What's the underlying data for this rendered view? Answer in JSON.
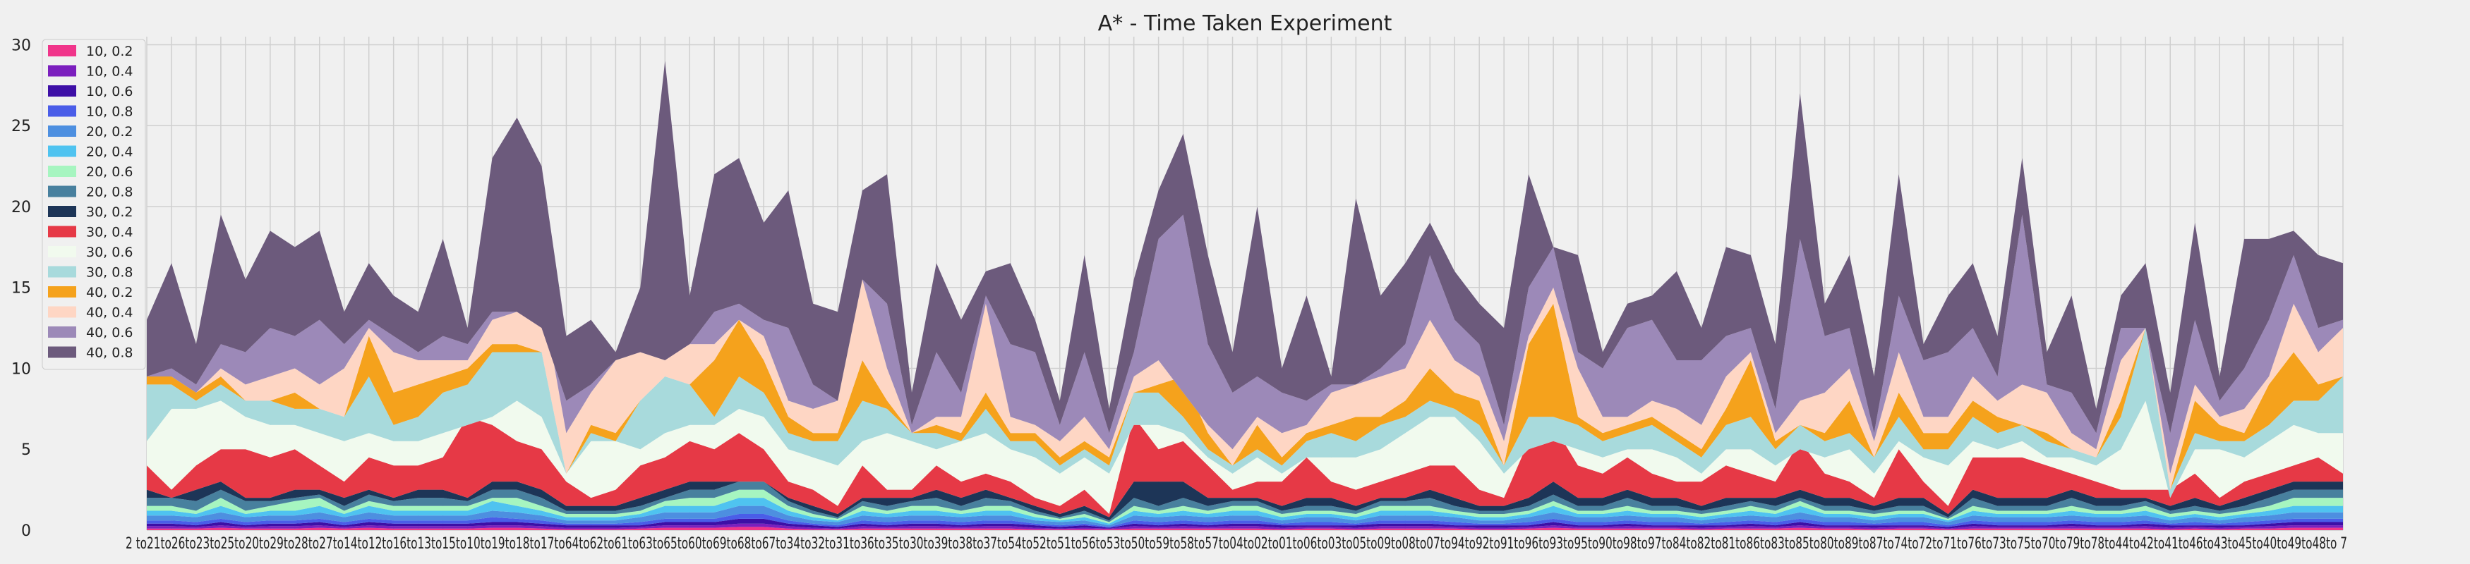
{
  "chart_data": {
    "type": "area",
    "stacked": true,
    "title": "A* - Time Taken Experiment",
    "xlabel": "",
    "ylabel": "",
    "ylim": [
      0,
      30.5
    ],
    "yticks": [
      0,
      5,
      10,
      15,
      20,
      25,
      30
    ],
    "grid": true,
    "legend_position": "top-left",
    "x": [
      "2 to21",
      "to26",
      "to23",
      "to25",
      "to20",
      "to29",
      "to28",
      "to27",
      "to14",
      "to12",
      "to16",
      "to13",
      "to15",
      "to10",
      "to19",
      "to18",
      "to17",
      "to64",
      "to62",
      "to61",
      "to63",
      "to65",
      "to60",
      "to69",
      "to68",
      "to67",
      "to34",
      "to32",
      "to31",
      "to36",
      "to35",
      "to30",
      "to39",
      "to38",
      "to37",
      "to54",
      "to52",
      "to51",
      "to56",
      "to53",
      "to50",
      "to59",
      "to58",
      "to57",
      "to04",
      "to02",
      "to01",
      "to06",
      "to03",
      "to05",
      "to09",
      "to08",
      "to07",
      "to94",
      "to92",
      "to91",
      "to96",
      "to93",
      "to95",
      "to90",
      "to98",
      "to97",
      "to84",
      "to82",
      "to81",
      "to86",
      "to83",
      "to85",
      "to80",
      "to89",
      "to87",
      "to74",
      "to72",
      "to71",
      "to76",
      "to73",
      "to75",
      "to70",
      "to79",
      "to78",
      "to44",
      "to42",
      "to41",
      "to46",
      "to43",
      "to45",
      "to40",
      "to49",
      "to48",
      "to 7"
    ],
    "x_axis_text": "2 to21to26to23to25to20to29to28to27to14to12to16to13to15to10to19to18to17to64to62to61to63to65to60to69to68to67to34to32to31to36to35to30to39to38to37to54to52to51to56to53to50to59to58to57to04to02to01to06to03to05to09to08to07to94to92to91to96to93to95to90to98to97to84to82to81to86to83to85to80to89to87to74to72to71to76to73to75to70to79to78to44to42to41to46to43to45to40to49to48to 7",
    "totals": [
      13,
      16.5,
      11.5,
      19.5,
      15.5,
      18.5,
      17.5,
      18.5,
      13.5,
      16.5,
      14.5,
      13.5,
      18,
      12.5,
      23,
      25.5,
      22.5,
      12,
      13,
      11,
      15,
      29,
      14.5,
      22,
      23,
      19,
      21,
      14,
      13.5,
      21,
      22,
      8.5,
      16.5,
      13,
      16,
      16.5,
      13,
      8,
      17,
      7.5,
      15.5,
      21,
      24.5,
      17,
      11,
      20,
      10,
      14.5,
      9.5,
      20.5,
      14.5,
      16.5,
      19,
      16,
      14,
      12.5,
      22,
      17.5,
      17,
      11,
      14,
      14.5,
      16,
      12.5,
      17.5,
      17,
      11.5,
      27,
      14,
      17,
      9.5,
      22,
      11.5,
      14.5,
      16.5,
      12,
      23,
      11,
      14.5,
      7.5,
      14.5,
      16.5,
      8.5,
      19,
      9.5,
      18,
      18,
      18.5,
      17,
      16.5
    ],
    "bound_40_6": [
      9.5,
      10,
      9,
      11.5,
      11,
      12.5,
      12,
      13,
      11.5,
      13,
      12,
      11,
      12,
      11.5,
      13.5,
      13.5,
      12.5,
      8,
      9,
      10.5,
      11,
      10.5,
      11.5,
      13.5,
      14,
      13,
      12.5,
      9,
      8,
      15.5,
      14,
      6.5,
      11,
      8.5,
      14.5,
      11.5,
      11,
      6.5,
      11,
      6,
      11,
      18,
      19.5,
      11.5,
      8.5,
      9.5,
      8.5,
      8,
      9,
      9,
      10,
      11.5,
      17,
      13,
      11.5,
      6.5,
      15,
      17.5,
      11,
      10,
      12.5,
      13,
      10.5,
      10.5,
      12,
      12.5,
      7.5,
      18,
      12,
      12.5,
      6,
      14.5,
      10.5,
      11,
      12.5,
      9.5,
      19.5,
      9,
      8.5,
      6,
      12.5,
      12.5,
      6,
      13,
      8,
      10,
      13,
      17,
      12.5,
      13
    ],
    "bound_40_4": [
      9.5,
      9.5,
      8.5,
      10,
      9,
      9.5,
      10,
      9,
      10,
      12.5,
      11,
      10.5,
      10.5,
      10.5,
      13,
      13.5,
      14.5,
      6,
      8.5,
      10.5,
      11,
      10.5,
      11.5,
      11.5,
      13,
      12,
      8,
      7.5,
      8,
      15.5,
      10,
      6,
      7,
      7,
      14,
      7,
      6.5,
      5.5,
      7,
      5,
      9.5,
      10.5,
      8.5,
      6.5,
      5,
      7,
      6,
      6.5,
      8.5,
      9,
      9.5,
      10,
      13,
      10.5,
      9.5,
      5.5,
      12,
      15,
      10,
      7,
      7,
      8,
      7.5,
      6.5,
      9.5,
      11,
      6,
      8,
      8.5,
      10,
      5.5,
      11,
      7,
      7,
      9.5,
      8,
      9,
      8.5,
      6,
      5,
      10.5,
      12.5,
      3.5,
      9,
      7,
      7.5,
      9.5,
      14,
      11,
      12.5
    ],
    "bound_40_2": [
      9.5,
      9.5,
      8.5,
      9.5,
      8,
      8,
      8.5,
      7.5,
      7,
      12,
      8.5,
      9,
      9.5,
      10,
      11.5,
      11.5,
      11,
      3.5,
      6.5,
      6,
      8,
      9.5,
      9,
      10.5,
      13,
      10.5,
      7,
      6,
      6,
      10.5,
      8,
      6,
      6.5,
      6,
      8.5,
      6,
      6,
      4.5,
      5.5,
      4.5,
      8.5,
      9,
      9.5,
      6,
      4,
      6.5,
      4.5,
      6,
      6.5,
      7,
      7,
      8,
      10,
      8.5,
      8,
      4,
      11.5,
      14,
      7,
      6,
      6.5,
      7,
      6,
      5,
      7.5,
      10.5,
      5.5,
      6.5,
      6,
      8,
      4.5,
      8.5,
      6,
      6,
      8,
      7,
      6.5,
      6,
      5,
      4.5,
      8,
      12.5,
      2.5,
      8,
      6.5,
      6,
      9,
      11,
      9,
      9.5
    ],
    "bound_30_8": [
      9,
      9,
      8,
      9,
      8,
      8,
      7.5,
      7.5,
      7,
      9.5,
      6.5,
      7,
      8.5,
      9,
      11,
      11,
      11,
      3.5,
      6,
      5.5,
      8,
      9.5,
      9,
      7,
      9.5,
      8.5,
      6,
      5.5,
      5.5,
      8,
      7.5,
      6,
      6,
      5.5,
      7.5,
      5.5,
      5.5,
      4,
      5,
      4,
      8.5,
      8.5,
      7,
      5,
      4,
      5,
      4,
      5.5,
      6,
      5.5,
      6.5,
      7,
      8,
      7.5,
      6.5,
      4,
      7,
      7,
      6.5,
      5.5,
      6,
      6.5,
      5.5,
      4.5,
      6.5,
      7,
      5,
      6.5,
      5.5,
      6,
      4.5,
      7,
      5,
      5,
      7,
      6,
      6.5,
      5.5,
      5,
      4.5,
      7,
      12.5,
      2.5,
      6,
      5.5,
      5.5,
      6.5,
      8,
      8,
      9.5
    ],
    "bound_30_6": [
      5.5,
      7.5,
      7.5,
      8,
      7,
      6.5,
      6.5,
      6,
      5.5,
      6,
      5.5,
      5.5,
      6,
      6.5,
      7,
      8,
      7,
      3.5,
      5.5,
      5.5,
      5,
      6,
      6.5,
      6.5,
      7.5,
      7,
      5,
      4.5,
      4,
      5.5,
      6,
      5.5,
      5,
      5.5,
      6,
      5,
      4.5,
      3.5,
      4.5,
      3.5,
      6.5,
      6.5,
      6,
      4.5,
      3.5,
      4.5,
      3.5,
      4.5,
      4.5,
      4.5,
      5,
      6,
      7,
      7,
      5.5,
      3.5,
      5,
      5.5,
      5,
      4.5,
      5,
      5,
      4.5,
      3.5,
      5,
      5,
      4,
      5,
      4.5,
      5,
      3.5,
      5.5,
      4.5,
      4,
      5.5,
      5,
      5.5,
      4.5,
      4.5,
      4,
      5,
      8,
      2,
      5,
      5,
      4.5,
      5.5,
      6.5,
      6,
      6
    ],
    "bound_30_4": [
      4,
      2.5,
      4,
      5,
      5,
      4.5,
      5,
      4,
      3,
      4.5,
      4,
      4,
      4.5,
      7,
      6.5,
      5.5,
      5,
      3,
      2,
      2.5,
      4,
      4.5,
      5.5,
      5,
      6,
      5,
      3,
      2.5,
      1.5,
      4,
      2.5,
      2.5,
      4,
      3,
      3.5,
      3,
      2,
      1.5,
      2.5,
      1,
      7,
      5,
      5.5,
      4,
      2.5,
      3,
      3,
      4.5,
      3,
      2.5,
      3,
      3.5,
      4,
      4,
      2.5,
      2,
      5.5,
      6.5,
      4,
      3.5,
      4.5,
      3.5,
      3,
      3,
      4,
      3.5,
      3,
      5.5,
      3.5,
      3,
      2,
      5,
      3,
      1.5,
      4.5,
      4.5,
      4.5,
      4,
      3.5,
      3,
      2.5,
      2.5,
      2.5,
      3.5,
      2,
      3,
      3.5,
      4,
      4.5,
      3.5
    ],
    "bound_30_2": [
      2.5,
      2,
      2.5,
      3,
      2,
      2,
      2.5,
      2.5,
      2,
      2.5,
      2,
      2.5,
      2.5,
      2,
      3,
      3,
      2.5,
      1.5,
      1.5,
      1.5,
      2,
      2.5,
      3,
      3,
      3,
      3,
      2,
      1.5,
      1,
      2,
      2,
      2,
      2.5,
      2,
      2.5,
      2,
      1.5,
      1,
      1.5,
      0.8,
      3,
      3,
      3,
      2,
      2,
      2,
      1.5,
      2,
      2,
      1.5,
      2,
      2,
      2.5,
      2,
      1.5,
      1.5,
      2,
      3,
      2,
      2,
      2.5,
      2,
      2,
      1.5,
      2,
      2,
      2,
      2.5,
      2,
      2,
      1.5,
      2,
      2,
      1,
      2.5,
      2,
      2,
      2,
      2.5,
      2,
      2,
      2,
      1.5,
      2,
      1.5,
      2,
      2.5,
      3,
      3,
      3
    ],
    "bound_20_8": [
      2,
      2,
      1.8,
      2.5,
      1.8,
      1.8,
      2,
      2.2,
      1.5,
      2.2,
      1.8,
      2,
      2,
      1.8,
      2.5,
      2.5,
      2,
      1.2,
      1.2,
      1.2,
      1.5,
      2,
      2.5,
      2.5,
      3,
      3,
      1.8,
      1.2,
      0.8,
      1.8,
      1.5,
      1.8,
      2,
      1.5,
      2,
      1.8,
      1.2,
      0.8,
      1.2,
      0.6,
      2,
      1.5,
      2,
      1.5,
      1.8,
      1.8,
      1.2,
      1.5,
      1.5,
      1.2,
      1.8,
      1.8,
      2,
      1.5,
      1.2,
      1.2,
      1.5,
      2.2,
      1.5,
      1.5,
      2,
      1.5,
      1.5,
      1.2,
      1.5,
      1.8,
      1.5,
      2,
      1.5,
      1.5,
      1.2,
      1.5,
      1.5,
      0.8,
      2,
      1.5,
      1.5,
      1.5,
      2,
      1.5,
      1.5,
      1.8,
      1.2,
      1.5,
      1.2,
      1.5,
      2,
      2.5,
      2.5,
      2.5
    ],
    "bound_20_6": [
      1.5,
      1.5,
      1.2,
      2,
      1.2,
      1.5,
      1.8,
      2,
      1.2,
      1.8,
      1.5,
      1.5,
      1.5,
      1.5,
      2,
      2,
      1.5,
      1,
      1,
      1,
      1.2,
      1.8,
      2,
      2,
      2.5,
      2.5,
      1.5,
      1,
      0.7,
      1.5,
      1.2,
      1.5,
      1.5,
      1.2,
      1.5,
      1.5,
      1,
      0.7,
      1,
      0.5,
      1.5,
      1.2,
      1.5,
      1.2,
      1.5,
      1.5,
      1,
      1.2,
      1.2,
      1,
      1.5,
      1.5,
      1.5,
      1.2,
      1,
      1,
      1.2,
      1.8,
      1.2,
      1.2,
      1.5,
      1.2,
      1.2,
      1,
      1.2,
      1.5,
      1.2,
      1.8,
      1.2,
      1.2,
      1,
      1.2,
      1.2,
      0.7,
      1.5,
      1.2,
      1.2,
      1.2,
      1.5,
      1.2,
      1.2,
      1.5,
      1,
      1.2,
      1,
      1.2,
      1.5,
      2,
      2,
      2
    ],
    "bound_20_4": [
      1.2,
      1.2,
      1,
      1.5,
      1,
      1.2,
      1.2,
      1.5,
      1,
      1.5,
      1.2,
      1.2,
      1.2,
      1.2,
      1.8,
      1.5,
      1.2,
      0.8,
      0.8,
      0.8,
      1,
      1.5,
      1.5,
      1.5,
      2,
      2,
      1.2,
      0.8,
      0.6,
      1.2,
      1,
      1.2,
      1.2,
      1,
      1.2,
      1.2,
      0.8,
      0.6,
      0.8,
      0.4,
      1.2,
      1,
      1.2,
      1,
      1.2,
      1.2,
      0.8,
      1,
      1,
      0.8,
      1.2,
      1.2,
      1.2,
      1,
      0.8,
      0.8,
      1,
      1.5,
      1,
      1,
      1.2,
      1,
      1,
      0.8,
      1,
      1.2,
      1,
      1.5,
      1,
      1,
      0.8,
      1,
      1,
      0.6,
      1.2,
      1,
      1,
      1,
      1.2,
      1,
      1,
      1.2,
      0.8,
      1,
      0.8,
      1,
      1.2,
      1.5,
      1.5,
      1.5
    ],
    "bound_20_2": [
      0.9,
      0.9,
      0.8,
      1.1,
      0.8,
      0.9,
      0.9,
      1.1,
      0.8,
      1.1,
      0.9,
      0.9,
      0.9,
      0.9,
      1.2,
      1.1,
      0.9,
      0.6,
      0.6,
      0.6,
      0.8,
      1.1,
      1.1,
      1.1,
      1.5,
      1.5,
      0.9,
      0.6,
      0.5,
      0.9,
      0.8,
      0.9,
      0.9,
      0.8,
      0.9,
      0.9,
      0.6,
      0.5,
      0.6,
      0.3,
      0.9,
      0.8,
      0.9,
      0.8,
      0.9,
      0.9,
      0.6,
      0.8,
      0.8,
      0.6,
      0.9,
      0.9,
      0.9,
      0.8,
      0.6,
      0.6,
      0.8,
      1.1,
      0.8,
      0.8,
      0.9,
      0.8,
      0.8,
      0.6,
      0.8,
      0.9,
      0.8,
      1.1,
      0.8,
      0.8,
      0.6,
      0.8,
      0.8,
      0.5,
      0.9,
      0.8,
      0.8,
      0.8,
      0.9,
      0.8,
      0.8,
      0.9,
      0.6,
      0.8,
      0.6,
      0.8,
      0.9,
      1.1,
      1.1,
      1.1
    ],
    "bound_10_8": [
      0.6,
      0.6,
      0.5,
      0.7,
      0.5,
      0.6,
      0.6,
      0.7,
      0.5,
      0.7,
      0.6,
      0.6,
      0.6,
      0.6,
      0.8,
      0.7,
      0.6,
      0.4,
      0.4,
      0.4,
      0.5,
      0.7,
      0.7,
      0.7,
      1,
      1,
      0.6,
      0.4,
      0.3,
      0.6,
      0.5,
      0.6,
      0.6,
      0.5,
      0.6,
      0.6,
      0.4,
      0.3,
      0.4,
      0.2,
      0.6,
      0.5,
      0.6,
      0.5,
      0.6,
      0.6,
      0.4,
      0.5,
      0.5,
      0.4,
      0.6,
      0.6,
      0.6,
      0.5,
      0.4,
      0.4,
      0.5,
      0.7,
      0.5,
      0.5,
      0.6,
      0.5,
      0.5,
      0.4,
      0.5,
      0.6,
      0.5,
      0.7,
      0.5,
      0.5,
      0.4,
      0.5,
      0.5,
      0.3,
      0.6,
      0.5,
      0.5,
      0.5,
      0.6,
      0.5,
      0.5,
      0.6,
      0.4,
      0.5,
      0.4,
      0.5,
      0.6,
      0.7,
      0.7,
      0.7
    ],
    "bound_10_6": [
      0.4,
      0.4,
      0.3,
      0.5,
      0.3,
      0.4,
      0.4,
      0.5,
      0.3,
      0.5,
      0.4,
      0.4,
      0.4,
      0.4,
      0.5,
      0.5,
      0.4,
      0.3,
      0.3,
      0.3,
      0.3,
      0.5,
      0.5,
      0.5,
      0.7,
      0.7,
      0.4,
      0.3,
      0.2,
      0.4,
      0.3,
      0.4,
      0.4,
      0.3,
      0.4,
      0.4,
      0.3,
      0.2,
      0.3,
      0.15,
      0.4,
      0.3,
      0.4,
      0.3,
      0.4,
      0.4,
      0.3,
      0.3,
      0.3,
      0.3,
      0.4,
      0.4,
      0.4,
      0.3,
      0.3,
      0.3,
      0.3,
      0.5,
      0.3,
      0.3,
      0.4,
      0.3,
      0.3,
      0.3,
      0.3,
      0.4,
      0.3,
      0.5,
      0.3,
      0.3,
      0.3,
      0.3,
      0.3,
      0.2,
      0.4,
      0.3,
      0.3,
      0.3,
      0.4,
      0.3,
      0.3,
      0.4,
      0.3,
      0.3,
      0.3,
      0.3,
      0.4,
      0.5,
      0.5,
      0.5
    ],
    "bound_10_4": [
      0.25,
      0.25,
      0.2,
      0.3,
      0.2,
      0.25,
      0.25,
      0.3,
      0.2,
      0.3,
      0.25,
      0.25,
      0.25,
      0.25,
      0.3,
      0.3,
      0.25,
      0.15,
      0.15,
      0.15,
      0.2,
      0.3,
      0.3,
      0.3,
      0.4,
      0.4,
      0.25,
      0.15,
      0.1,
      0.25,
      0.2,
      0.25,
      0.25,
      0.2,
      0.25,
      0.25,
      0.15,
      0.1,
      0.15,
      0.1,
      0.25,
      0.2,
      0.25,
      0.2,
      0.25,
      0.25,
      0.15,
      0.2,
      0.2,
      0.15,
      0.25,
      0.25,
      0.25,
      0.2,
      0.15,
      0.15,
      0.2,
      0.3,
      0.2,
      0.2,
      0.25,
      0.2,
      0.2,
      0.15,
      0.2,
      0.25,
      0.2,
      0.3,
      0.2,
      0.2,
      0.15,
      0.2,
      0.2,
      0.1,
      0.25,
      0.2,
      0.2,
      0.2,
      0.25,
      0.2,
      0.2,
      0.25,
      0.15,
      0.2,
      0.15,
      0.2,
      0.25,
      0.3,
      0.3,
      0.3
    ],
    "bound_10_2": [
      0.1,
      0.1,
      0.1,
      0.15,
      0.1,
      0.1,
      0.1,
      0.15,
      0.1,
      0.15,
      0.1,
      0.1,
      0.1,
      0.1,
      0.15,
      0.15,
      0.1,
      0.05,
      0.05,
      0.05,
      0.1,
      0.15,
      0.15,
      0.15,
      0.2,
      0.2,
      0.1,
      0.05,
      0.05,
      0.1,
      0.1,
      0.1,
      0.1,
      0.1,
      0.1,
      0.1,
      0.05,
      0.05,
      0.05,
      0.05,
      0.1,
      0.1,
      0.1,
      0.1,
      0.1,
      0.1,
      0.05,
      0.1,
      0.1,
      0.05,
      0.1,
      0.1,
      0.1,
      0.1,
      0.05,
      0.05,
      0.1,
      0.15,
      0.1,
      0.1,
      0.1,
      0.1,
      0.1,
      0.05,
      0.1,
      0.1,
      0.1,
      0.15,
      0.1,
      0.1,
      0.05,
      0.1,
      0.1,
      0.05,
      0.1,
      0.1,
      0.1,
      0.1,
      0.1,
      0.1,
      0.1,
      0.1,
      0.05,
      0.1,
      0.05,
      0.1,
      0.1,
      0.15,
      0.15,
      0.15
    ],
    "series_order": [
      "10, 0.2",
      "10, 0.4",
      "10, 0.6",
      "10, 0.8",
      "20, 0.2",
      "20, 0.4",
      "20, 0.6",
      "20, 0.8",
      "30, 0.2",
      "30, 0.4",
      "30, 0.6",
      "30, 0.8",
      "40, 0.2",
      "40, 0.4",
      "40, 0.6",
      "40, 0.8"
    ],
    "series_bounds": [
      "bound_10_2",
      "bound_10_4",
      "bound_10_6",
      "bound_10_8",
      "bound_20_2",
      "bound_20_4",
      "bound_20_6",
      "bound_20_8",
      "bound_30_2",
      "bound_30_4",
      "bound_30_6",
      "bound_30_8",
      "bound_40_2",
      "bound_40_4",
      "bound_40_6",
      "totals"
    ],
    "series_colors": [
      "#f0358a",
      "#7b1fbe",
      "#3d0fa6",
      "#4a5de8",
      "#4d8fe0",
      "#4fc3f0",
      "#a6f5c0",
      "#48809e",
      "#1d3557",
      "#e63946",
      "#f1faee",
      "#a8dadc",
      "#f5a21c",
      "#fed6c4",
      "#9c89b8",
      "#6c5a7c"
    ]
  }
}
